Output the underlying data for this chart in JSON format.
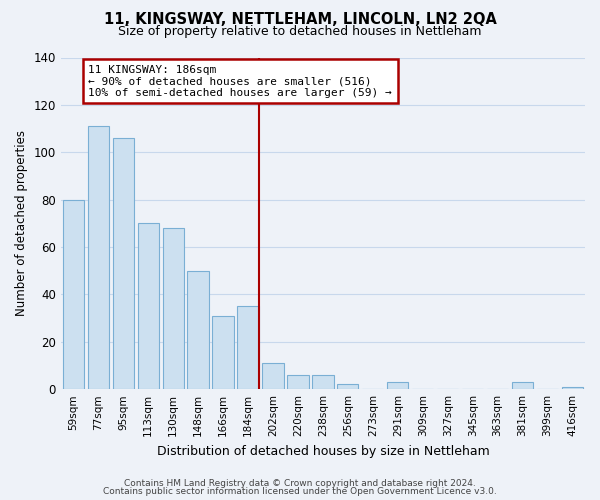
{
  "title": "11, KINGSWAY, NETTLEHAM, LINCOLN, LN2 2QA",
  "subtitle": "Size of property relative to detached houses in Nettleham",
  "xlabel": "Distribution of detached houses by size in Nettleham",
  "ylabel": "Number of detached properties",
  "categories": [
    "59sqm",
    "77sqm",
    "95sqm",
    "113sqm",
    "130sqm",
    "148sqm",
    "166sqm",
    "184sqm",
    "202sqm",
    "220sqm",
    "238sqm",
    "256sqm",
    "273sqm",
    "291sqm",
    "309sqm",
    "327sqm",
    "345sqm",
    "363sqm",
    "381sqm",
    "399sqm",
    "416sqm"
  ],
  "values": [
    80,
    111,
    106,
    70,
    68,
    50,
    31,
    35,
    11,
    6,
    6,
    2,
    0,
    3,
    0,
    0,
    0,
    0,
    3,
    0,
    1
  ],
  "bar_color": "#cce0f0",
  "bar_edge_color": "#7aafd4",
  "vline_index": 7,
  "vline_color": "#aa0000",
  "annotation_text": "11 KINGSWAY: 186sqm\n← 90% of detached houses are smaller (516)\n10% of semi-detached houses are larger (59) →",
  "annotation_box_color": "#ffffff",
  "annotation_box_edge_color": "#aa0000",
  "ylim": [
    0,
    140
  ],
  "yticks": [
    0,
    20,
    40,
    60,
    80,
    100,
    120,
    140
  ],
  "grid_color": "#c8d8ec",
  "bg_color": "#eef2f8",
  "footer_line1": "Contains HM Land Registry data © Crown copyright and database right 2024.",
  "footer_line2": "Contains public sector information licensed under the Open Government Licence v3.0."
}
